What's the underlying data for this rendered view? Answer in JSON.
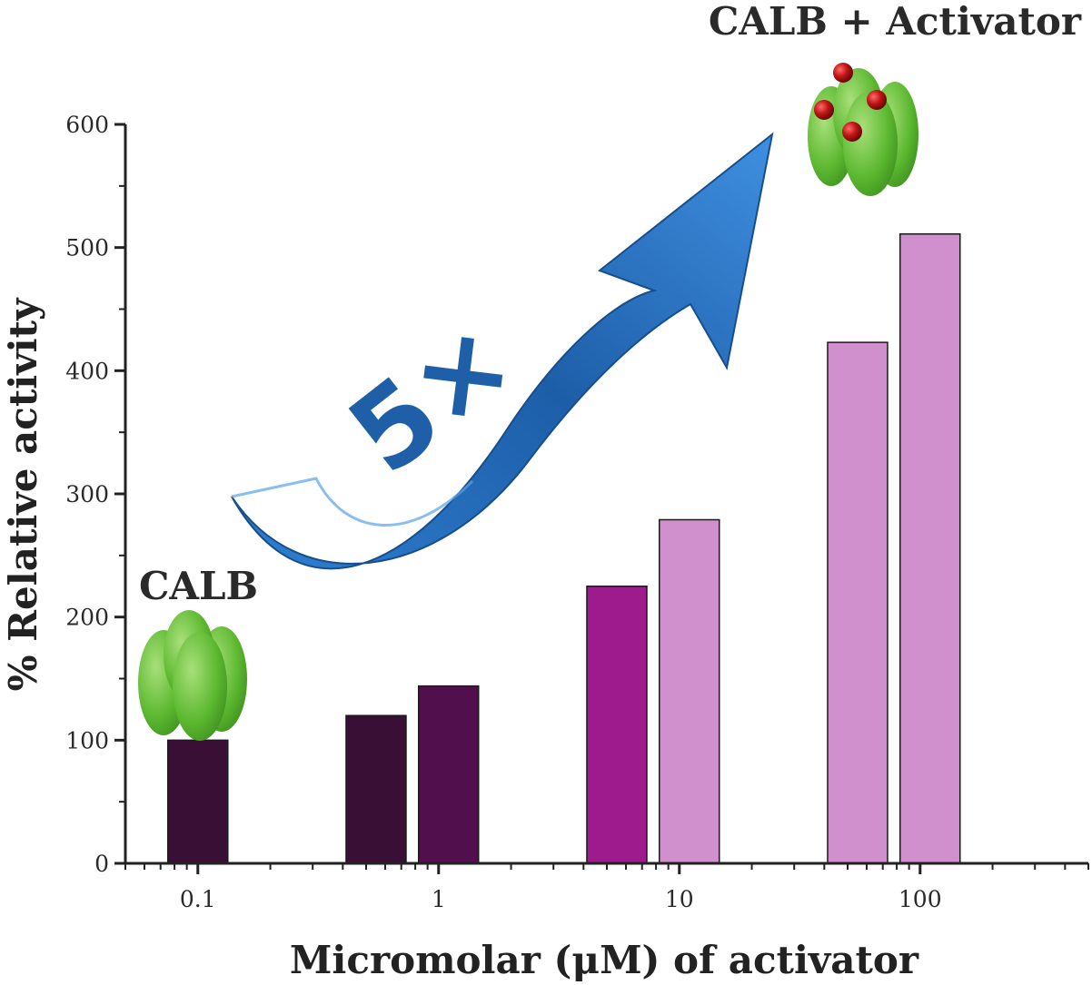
{
  "chart_data": {
    "type": "bar",
    "title": "",
    "xlabel": "Micromolar (μM) of activator",
    "ylabel": "% Relative activity",
    "x_scale": "log",
    "xlim": [
      0.05,
      500
    ],
    "ylim": [
      0,
      600
    ],
    "y_ticks": [
      0,
      100,
      200,
      300,
      400,
      500,
      600
    ],
    "x_ticks": [
      {
        "value": 0.1,
        "label": "0.1"
      },
      {
        "value": 1,
        "label": "1"
      },
      {
        "value": 10,
        "label": "10"
      },
      {
        "value": 100,
        "label": "100"
      }
    ],
    "bars": [
      {
        "x": 0.1,
        "value": 100,
        "color": "#3a0f35"
      },
      {
        "x": 0.55,
        "value": 120,
        "color": "#3a0f35"
      },
      {
        "x": 1.1,
        "value": 144,
        "color": "#520f4e"
      },
      {
        "x": 5.5,
        "value": 225,
        "color": "#9e1b8e"
      },
      {
        "x": 11,
        "value": 279,
        "color": "#d08fcd"
      },
      {
        "x": 55,
        "value": 423,
        "color": "#d08fcd"
      },
      {
        "x": 110,
        "value": 511,
        "color": "#d08fcd"
      }
    ],
    "annotations": {
      "left_label": "CALB",
      "right_label": "CALB + Activator",
      "fold_label": "5×"
    },
    "colors": {
      "protein_green": "#6ec13e",
      "arrow_blue": "#1f5fa8",
      "activator_red": "#b01010"
    }
  }
}
